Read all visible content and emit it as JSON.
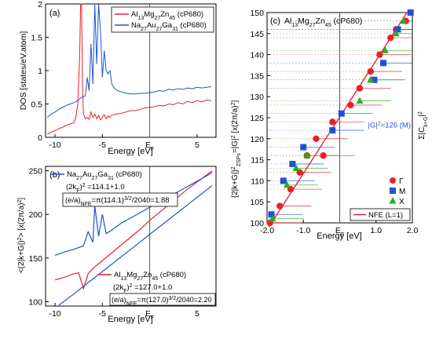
{
  "chart_data": [
    {
      "panel_label": "(a)",
      "type": "line",
      "xlabel": "Energy [eV]",
      "ylabel": "DOS [states/eV.atom]",
      "xlim": [
        -11,
        7
      ],
      "ylim": [
        0,
        2
      ],
      "x_ticks": [
        -10,
        -5,
        5
      ],
      "x_ef_label": "E",
      "x_ef_sub": "F",
      "y_ticks": [
        0,
        0.5,
        1,
        1.5,
        2
      ],
      "y_tick_labels": [
        "0",
        "0.5",
        "1",
        "1.5",
        "2"
      ],
      "legend_position": "top-right",
      "legend": [
        {
          "parts": [
            "Al",
            "13",
            "Mg",
            "27",
            "Zn",
            "45",
            " (cP680)"
          ],
          "color": "#e8202a"
        },
        {
          "parts": [
            "Na",
            "27",
            "Au",
            "27",
            "Ga",
            "31",
            " (cP680)"
          ],
          "color": "#2050d8"
        }
      ],
      "series": [
        {
          "color": "#e8202a",
          "x": [
            -10.8,
            -10.4,
            -10,
            -9.6,
            -9.2,
            -8.8,
            -8.4,
            -8.0,
            -7.8,
            -7.6,
            -7.4,
            -7.3,
            -7.2,
            -7.1,
            -7.0,
            -6.8,
            -6.6,
            -6.4,
            -6.2,
            -6.0,
            -5.8,
            -5.6,
            -5.4,
            -5.2,
            -5.0,
            -4.8,
            -4.6,
            -4.4,
            -4.2,
            -4.0,
            -3.5,
            -3.0,
            -2.5,
            -2.0,
            -1.5,
            -1.0,
            -0.5,
            0,
            0.5,
            1,
            1.5,
            2,
            2.5,
            3,
            3.5,
            4,
            4.5,
            5,
            5.5,
            6,
            6.5
          ],
          "y": [
            0.05,
            0.08,
            0.1,
            0.13,
            0.15,
            0.18,
            0.2,
            0.22,
            0.3,
            0.5,
            1.2,
            2.0,
            2.0,
            0.8,
            0.35,
            0.28,
            0.3,
            0.27,
            0.38,
            0.3,
            0.35,
            0.28,
            0.33,
            0.26,
            0.3,
            0.34,
            0.28,
            0.32,
            0.3,
            0.33,
            0.35,
            0.36,
            0.38,
            0.4,
            0.4,
            0.42,
            0.44,
            0.45,
            0.46,
            0.48,
            0.47,
            0.5,
            0.49,
            0.52,
            0.5,
            0.54,
            0.52,
            0.55,
            0.53,
            0.56,
            0.55
          ]
        },
        {
          "color": "#2050d8",
          "x": [
            -10.8,
            -10.4,
            -10,
            -9.6,
            -9.2,
            -8.8,
            -8.4,
            -8.0,
            -7.6,
            -7.2,
            -6.8,
            -6.6,
            -6.4,
            -6.2,
            -6.0,
            -5.8,
            -5.6,
            -5.4,
            -5.2,
            -5.0,
            -4.8,
            -4.6,
            -4.4,
            -4.2,
            -4.0,
            -3.8,
            -3.6,
            -3.4,
            -3.0,
            -2.5,
            -2.0,
            -1.5,
            -1.0,
            -0.5,
            0,
            0.5,
            1,
            1.5,
            2,
            2.5,
            3,
            3.5,
            4,
            4.5,
            5,
            5.5,
            6,
            6.5
          ],
          "y": [
            0.3,
            0.35,
            0.38,
            0.42,
            0.45,
            0.48,
            0.5,
            0.52,
            0.55,
            0.6,
            0.62,
            0.9,
            0.7,
            1.4,
            0.8,
            2.0,
            1.1,
            2.0,
            1.6,
            0.9,
            1.3,
            1.0,
            0.95,
            1.0,
            0.8,
            0.75,
            0.72,
            0.7,
            0.68,
            0.66,
            0.65,
            0.65,
            0.66,
            0.66,
            0.67,
            0.68,
            0.7,
            0.69,
            0.72,
            0.71,
            0.73,
            0.72,
            0.74,
            0.73,
            0.75,
            0.74,
            0.75,
            0.76
          ]
        }
      ]
    },
    {
      "panel_label": "(b)",
      "type": "line",
      "xlabel": "Energy [eV]",
      "ylabel_parts": [
        "<(2|k+G|)",
        "2",
        "> [x(2π/a)",
        "2",
        "]"
      ],
      "xlim": [
        -11,
        7
      ],
      "ylim": [
        95,
        255
      ],
      "x_ticks": [
        -10,
        -5,
        5
      ],
      "x_ef_label": "E",
      "x_ef_sub": "F",
      "y_ticks": [
        100,
        150,
        200,
        250
      ],
      "y_tick_labels": [
        "100",
        "150",
        "200",
        "250"
      ],
      "annotations_top": {
        "compound_parts": [
          "Na",
          "27",
          "Au",
          "27",
          "Ga",
          "31",
          " (cP680)"
        ],
        "kf_line": [
          "(2k",
          "F",
          ")",
          "2",
          " =114.1",
          "+",
          "1.0"
        ],
        "ea_line": [
          "(e/a)",
          "NFE",
          "=π(114.1)",
          "3/2",
          "/2040=1.88"
        ]
      },
      "annotations_bottom": {
        "compound_parts": [
          "Al",
          "13",
          "Mg",
          "27",
          "Zn",
          "45",
          " (cP680)"
        ],
        "kf_line": [
          "(2k",
          "F",
          ")",
          "2",
          " =127.0",
          "+",
          "1.0"
        ],
        "ea_line": [
          "(e/a)",
          "NFE",
          "=π(127.0)",
          "3/2",
          "/2040=2.20"
        ]
      },
      "series": [
        {
          "color": "#e8202a",
          "x": [
            -10,
            -9,
            -8,
            -7.5,
            -7,
            -6.5,
            -6,
            -5,
            -4,
            -3,
            -2,
            -1,
            0,
            1,
            2,
            3,
            4,
            5,
            6,
            6.6
          ],
          "y": [
            125,
            128,
            132,
            133,
            115,
            132,
            138,
            147,
            156,
            165,
            174,
            183,
            193,
            202,
            211,
            220,
            229,
            237,
            245,
            250
          ]
        },
        {
          "color": "#2050d8",
          "x": [
            -10,
            -9,
            -8,
            -7,
            -6.5,
            -6,
            -5.8,
            -5.4,
            -5,
            -4.6,
            -4,
            -3.5,
            -3,
            -2,
            -1,
            0,
            1,
            2,
            3,
            4,
            5,
            6,
            6.6
          ],
          "y": [
            153,
            157,
            160,
            164,
            180,
            168,
            210,
            175,
            200,
            178,
            182,
            186,
            190,
            196,
            202,
            208,
            214,
            220,
            226,
            232,
            238,
            244,
            248
          ]
        },
        {
          "color": "#2050d8",
          "x": [
            -9.6,
            -8,
            -6,
            -4,
            -2,
            0,
            2,
            4,
            6,
            6.6
          ],
          "y": [
            96,
            109,
            126,
            143,
            160,
            177,
            194,
            211,
            228,
            233
          ]
        }
      ]
    },
    {
      "panel_label": "(c)",
      "type": "scatter",
      "title_parts": [
        "Al",
        "13",
        "Mg",
        "27",
        "Zn",
        "45",
        " (cP680)"
      ],
      "xlabel": "Energy [eV]",
      "ylabel_parts": [
        "{2|k+G|}",
        "2",
        "ZSPs",
        "=|G|",
        "2",
        " [x(2π/a)",
        "2",
        "]"
      ],
      "right_label_parts": [
        "Σ|C",
        "k+G",
        "|",
        "2"
      ],
      "xlim": [
        -2.0,
        2.0
      ],
      "ylim": [
        100,
        150
      ],
      "x_ticks": [
        -2.0,
        -1.0,
        1.0,
        2.0
      ],
      "x_tick_labels": [
        "-2.0",
        "-1.0",
        "1.0",
        "2.0"
      ],
      "x_ef_label": "E",
      "x_ef_sub": "F",
      "y_ticks": [
        100,
        105,
        110,
        115,
        120,
        125,
        130,
        135,
        140,
        145,
        150
      ],
      "g2_label": "|G|",
      "g2_text": "=126 (M)",
      "legend_position": "bottom-right",
      "legend_points": [
        {
          "symbol": "circle",
          "label": "Γ",
          "color": "#e8202a"
        },
        {
          "symbol": "square",
          "label": "M",
          "color": "#2050d8"
        },
        {
          "symbol": "triangle",
          "label": "X",
          "color": "#22b020"
        }
      ],
      "legend_line": {
        "label": "NFE (L=1)",
        "color": "#e8202a"
      },
      "gamma": {
        "x": [
          -1.92,
          -1.65,
          -1.35,
          -1.1,
          -0.9,
          -0.65,
          -0.45,
          -0.2,
          0.3,
          0.55,
          0.85,
          1.1,
          1.4,
          1.55,
          1.82
        ],
        "y": [
          100,
          104,
          108,
          112,
          116,
          120,
          116,
          124,
          128,
          132,
          136,
          140,
          144,
          146,
          148
        ]
      },
      "m": {
        "x": [
          -1.88,
          -1.55,
          -1.3,
          -1.0,
          -0.2,
          0.05,
          0.95,
          1.2,
          1.6,
          1.95
        ],
        "y": [
          102,
          110,
          114,
          118,
          122,
          126,
          134,
          138,
          146,
          150
        ]
      },
      "x_pts": {
        "x": [
          -1.85,
          -1.45,
          -1.2,
          -0.9,
          0.55,
          0.85,
          1.25,
          1.55,
          1.75
        ],
        "y": [
          101,
          109,
          113,
          116,
          129,
          134,
          141,
          145,
          148
        ]
      },
      "nfe_line": {
        "x": [
          -1.95,
          1.85
        ],
        "y": [
          99,
          150
        ]
      }
    }
  ]
}
